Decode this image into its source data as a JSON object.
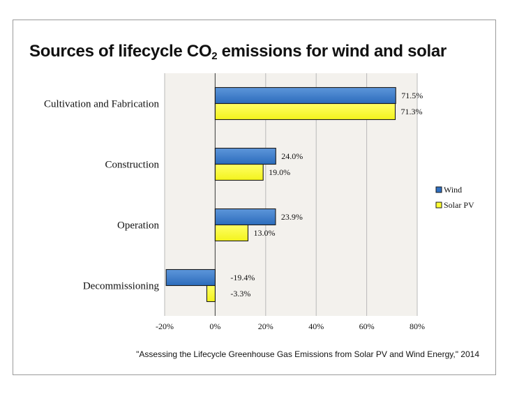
{
  "title": {
    "main": "Sources of lifecycle CO",
    "sub": "2",
    "rest": " emissions for wind and solar"
  },
  "source": "\"Assessing the Lifecycle Greenhouse Gas Emissions from Solar PV and Wind Energy,\" 2014",
  "chart_data": {
    "type": "bar",
    "orientation": "horizontal",
    "categories": [
      "Cultivation and Fabrication",
      "Construction",
      "Operation",
      "Decommissioning"
    ],
    "series": [
      {
        "name": "Wind",
        "values": [
          71.5,
          24.0,
          23.9,
          -19.4
        ],
        "labels": [
          "71.5%",
          "24.0%",
          "23.9%",
          "-19.4%"
        ],
        "color": "#2f6fc0"
      },
      {
        "name": "Solar PV",
        "values": [
          71.3,
          19.0,
          13.0,
          -3.3
        ],
        "labels": [
          "71.3%",
          "19.0%",
          "13.0%",
          "-3.3%"
        ],
        "color": "#ffff33"
      }
    ],
    "xlim": [
      -20,
      80
    ],
    "xticks": [
      -20,
      0,
      20,
      40,
      60,
      80
    ],
    "xtick_labels": [
      "-20%",
      "0%",
      "20%",
      "40%",
      "60%",
      "80%"
    ],
    "grid": true,
    "legend_position": "right"
  }
}
